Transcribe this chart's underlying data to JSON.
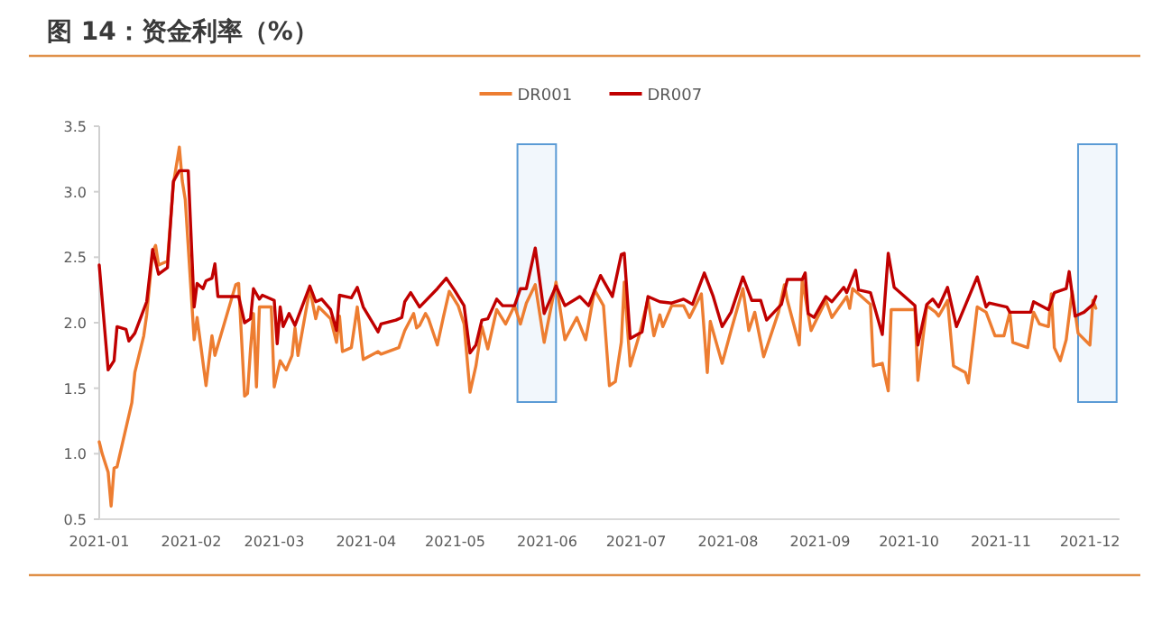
{
  "chart_data": {
    "type": "line",
    "title": "图 14：资金利率（%）",
    "legend": "top",
    "xlim": [
      "2021-01-01",
      "2021-12-11"
    ],
    "ylim": [
      0.5,
      3.5
    ],
    "xticks": [
      "2021-01",
      "2021-02",
      "2021-03",
      "2021-04",
      "2021-05",
      "2021-06",
      "2021-07",
      "2021-08",
      "2021-09",
      "2021-10",
      "2021-11",
      "2021-12"
    ],
    "yticks": [
      0.5,
      {
        "value": 1,
        "label": "1.0"
      },
      1.5,
      {
        "value": 2,
        "label": "2.0"
      },
      2.5,
      {
        "value": 3,
        "label": "3.0"
      },
      3.5
    ],
    "bands": [
      {
        "axis": "x",
        "from": "2021-05-22",
        "to": "2021-06-04",
        "color": "#5b9bd5"
      },
      {
        "axis": "x",
        "from": "2021-11-27",
        "to": "2021-12-10",
        "color": "#5b9bd5"
      }
    ],
    "series": [
      {
        "name": "DR001",
        "color": "#ed7d31",
        "x": [
          "2021-01-01",
          "2021-01-02",
          "2021-01-04",
          "2021-01-05",
          "2021-01-06",
          "2021-01-07",
          "2021-01-12",
          "2021-01-13",
          "2021-01-16",
          "2021-01-17",
          "2021-01-19",
          "2021-01-20",
          "2021-01-21",
          "2021-01-24",
          "2021-01-26",
          "2021-01-28",
          "2021-01-29",
          "2021-01-30",
          "2021-02-02",
          "2021-02-03",
          "2021-02-06",
          "2021-02-08",
          "2021-02-09",
          "2021-02-16",
          "2021-02-17",
          "2021-02-19",
          "2021-02-20",
          "2021-02-21",
          "2021-02-22",
          "2021-02-23",
          "2021-02-24",
          "2021-02-28",
          "2021-03-01",
          "2021-03-03",
          "2021-03-05",
          "2021-03-07",
          "2021-03-08",
          "2021-03-09",
          "2021-03-13",
          "2021-03-15",
          "2021-03-16",
          "2021-03-20",
          "2021-03-22",
          "2021-03-23",
          "2021-03-24",
          "2021-03-27",
          "2021-03-29",
          "2021-03-31",
          "2021-04-05",
          "2021-04-06",
          "2021-04-12",
          "2021-04-14",
          "2021-04-17",
          "2021-04-18",
          "2021-04-19",
          "2021-04-21",
          "2021-04-22",
          "2021-04-25",
          "2021-04-27",
          "2021-04-29",
          "2021-05-02",
          "2021-05-04",
          "2021-05-06",
          "2021-05-08",
          "2021-05-10",
          "2021-05-12",
          "2021-05-15",
          "2021-05-18",
          "2021-05-21",
          "2021-05-23",
          "2021-05-25",
          "2021-05-28",
          "2021-05-31",
          "2021-06-04",
          "2021-06-07",
          "2021-06-11",
          "2021-06-14",
          "2021-06-17",
          "2021-06-20",
          "2021-06-22",
          "2021-06-24",
          "2021-06-26",
          "2021-06-27",
          "2021-06-29",
          "2021-07-02",
          "2021-07-05",
          "2021-07-07",
          "2021-07-09",
          "2021-07-10",
          "2021-07-13",
          "2021-07-17",
          "2021-07-19",
          "2021-07-23",
          "2021-07-25",
          "2021-07-26",
          "2021-07-30",
          "2021-08-02",
          "2021-08-06",
          "2021-08-08",
          "2021-08-10",
          "2021-08-13",
          "2021-08-18",
          "2021-08-20",
          "2021-08-21",
          "2021-08-25",
          "2021-08-26",
          "2021-08-29",
          "2021-09-03",
          "2021-09-05",
          "2021-09-10",
          "2021-09-11",
          "2021-09-12",
          "2021-09-18",
          "2021-09-19",
          "2021-09-22",
          "2021-09-24",
          "2021-09-25",
          "2021-10-03",
          "2021-10-04",
          "2021-10-07",
          "2021-10-10",
          "2021-10-11",
          "2021-10-14",
          "2021-10-16",
          "2021-10-20",
          "2021-10-21",
          "2021-10-24",
          "2021-10-27",
          "2021-10-30",
          "2021-11-02",
          "2021-11-04",
          "2021-11-05",
          "2021-11-10",
          "2021-11-12",
          "2021-11-14",
          "2021-11-17",
          "2021-11-18",
          "2021-11-19",
          "2021-11-21",
          "2021-11-23",
          "2021-11-25",
          "2021-11-27",
          "2021-12-01",
          "2021-12-02",
          "2021-12-03"
        ],
        "values": [
          1.09,
          1.0,
          0.86,
          0.6,
          0.89,
          0.9,
          1.39,
          1.62,
          1.9,
          2.06,
          2.54,
          2.59,
          2.44,
          2.47,
          3.06,
          3.34,
          3.08,
          2.94,
          1.87,
          2.04,
          1.52,
          1.9,
          1.75,
          2.29,
          2.3,
          1.44,
          1.46,
          1.8,
          2.07,
          1.51,
          2.12,
          2.12,
          1.51,
          1.71,
          1.64,
          1.75,
          1.96,
          1.75,
          2.26,
          2.03,
          2.12,
          2.03,
          1.85,
          2.05,
          1.78,
          1.81,
          2.12,
          1.72,
          1.78,
          1.76,
          1.81,
          1.94,
          2.07,
          1.96,
          1.98,
          2.07,
          2.03,
          1.83,
          2.04,
          2.24,
          2.13,
          1.99,
          1.47,
          1.67,
          1.97,
          1.8,
          2.1,
          1.99,
          2.13,
          1.99,
          2.15,
          2.29,
          1.85,
          2.31,
          1.87,
          2.04,
          1.87,
          2.25,
          2.13,
          1.52,
          1.55,
          1.85,
          2.31,
          1.67,
          1.9,
          2.18,
          1.9,
          2.06,
          1.97,
          2.13,
          2.13,
          2.04,
          2.22,
          1.62,
          2.01,
          1.69,
          1.94,
          2.26,
          1.94,
          2.08,
          1.74,
          2.08,
          2.29,
          2.17,
          1.83,
          2.33,
          1.94,
          2.17,
          2.04,
          2.2,
          2.11,
          2.26,
          2.14,
          1.67,
          1.69,
          1.48,
          2.1,
          2.1,
          1.56,
          2.13,
          2.08,
          2.05,
          2.17,
          1.67,
          1.62,
          1.54,
          2.12,
          2.08,
          1.9,
          1.9,
          2.08,
          1.85,
          1.81,
          2.08,
          1.99,
          1.97,
          2.22,
          1.81,
          1.71,
          1.87,
          2.24,
          1.92,
          1.83,
          2.17,
          2.11
        ]
      },
      {
        "name": "DR007",
        "color": "#c00000",
        "x": [
          "2021-01-01",
          "2021-01-04",
          "2021-01-06",
          "2021-01-07",
          "2021-01-10",
          "2021-01-11",
          "2021-01-13",
          "2021-01-17",
          "2021-01-19",
          "2021-01-21",
          "2021-01-24",
          "2021-01-26",
          "2021-01-28",
          "2021-01-31",
          "2021-02-02",
          "2021-02-03",
          "2021-02-05",
          "2021-02-06",
          "2021-02-08",
          "2021-02-09",
          "2021-02-10",
          "2021-02-17",
          "2021-02-19",
          "2021-02-21",
          "2021-02-22",
          "2021-02-24",
          "2021-02-25",
          "2021-03-01",
          "2021-03-02",
          "2021-03-03",
          "2021-03-04",
          "2021-03-06",
          "2021-03-08",
          "2021-03-13",
          "2021-03-15",
          "2021-03-17",
          "2021-03-20",
          "2021-03-22",
          "2021-03-23",
          "2021-03-27",
          "2021-03-29",
          "2021-03-31",
          "2021-04-05",
          "2021-04-06",
          "2021-04-11",
          "2021-04-13",
          "2021-04-14",
          "2021-04-16",
          "2021-04-19",
          "2021-04-25",
          "2021-04-28",
          "2021-05-01",
          "2021-05-04",
          "2021-05-06",
          "2021-05-08",
          "2021-05-10",
          "2021-05-12",
          "2021-05-15",
          "2021-05-17",
          "2021-05-21",
          "2021-05-23",
          "2021-05-25",
          "2021-05-28",
          "2021-05-31",
          "2021-06-04",
          "2021-06-07",
          "2021-06-12",
          "2021-06-15",
          "2021-06-19",
          "2021-06-23",
          "2021-06-26",
          "2021-06-27",
          "2021-06-29",
          "2021-07-03",
          "2021-07-05",
          "2021-07-09",
          "2021-07-13",
          "2021-07-17",
          "2021-07-20",
          "2021-07-24",
          "2021-07-27",
          "2021-07-30",
          "2021-08-02",
          "2021-08-06",
          "2021-08-09",
          "2021-08-12",
          "2021-08-14",
          "2021-08-19",
          "2021-08-21",
          "2021-08-26",
          "2021-08-27",
          "2021-08-28",
          "2021-08-30",
          "2021-09-03",
          "2021-09-05",
          "2021-09-09",
          "2021-09-10",
          "2021-09-13",
          "2021-09-14",
          "2021-09-18",
          "2021-09-22",
          "2021-09-24",
          "2021-09-26",
          "2021-10-03",
          "2021-10-04",
          "2021-10-07",
          "2021-10-09",
          "2021-10-11",
          "2021-10-14",
          "2021-10-17",
          "2021-10-24",
          "2021-10-27",
          "2021-10-28",
          "2021-11-03",
          "2021-11-04",
          "2021-11-11",
          "2021-11-12",
          "2021-11-17",
          "2021-11-19",
          "2021-11-23",
          "2021-11-24",
          "2021-11-26",
          "2021-11-29",
          "2021-12-02",
          "2021-12-03"
        ],
        "values": [
          2.44,
          1.64,
          1.71,
          1.97,
          1.95,
          1.86,
          1.92,
          2.16,
          2.56,
          2.37,
          2.42,
          3.08,
          3.16,
          3.16,
          2.12,
          2.3,
          2.26,
          2.32,
          2.34,
          2.45,
          2.2,
          2.2,
          2.0,
          2.03,
          2.26,
          2.18,
          2.21,
          2.17,
          1.84,
          2.12,
          1.97,
          2.07,
          1.98,
          2.28,
          2.16,
          2.18,
          2.1,
          1.94,
          2.21,
          2.19,
          2.27,
          2.12,
          1.93,
          1.99,
          2.02,
          2.04,
          2.16,
          2.23,
          2.12,
          2.26,
          2.34,
          2.24,
          2.13,
          1.77,
          1.83,
          2.02,
          2.03,
          2.18,
          2.13,
          2.13,
          2.26,
          2.26,
          2.57,
          2.07,
          2.28,
          2.13,
          2.2,
          2.13,
          2.36,
          2.2,
          2.52,
          2.53,
          1.88,
          1.93,
          2.2,
          2.16,
          2.15,
          2.18,
          2.14,
          2.38,
          2.2,
          1.97,
          2.08,
          2.35,
          2.17,
          2.17,
          2.02,
          2.14,
          2.33,
          2.33,
          2.38,
          2.07,
          2.04,
          2.2,
          2.16,
          2.27,
          2.23,
          2.4,
          2.25,
          2.23,
          1.91,
          2.53,
          2.27,
          2.13,
          1.83,
          2.14,
          2.18,
          2.12,
          2.27,
          1.97,
          2.35,
          2.12,
          2.15,
          2.12,
          2.08,
          2.08,
          2.16,
          2.1,
          2.23,
          2.26,
          2.39,
          2.05,
          2.08,
          2.14,
          2.2
        ]
      }
    ]
  }
}
